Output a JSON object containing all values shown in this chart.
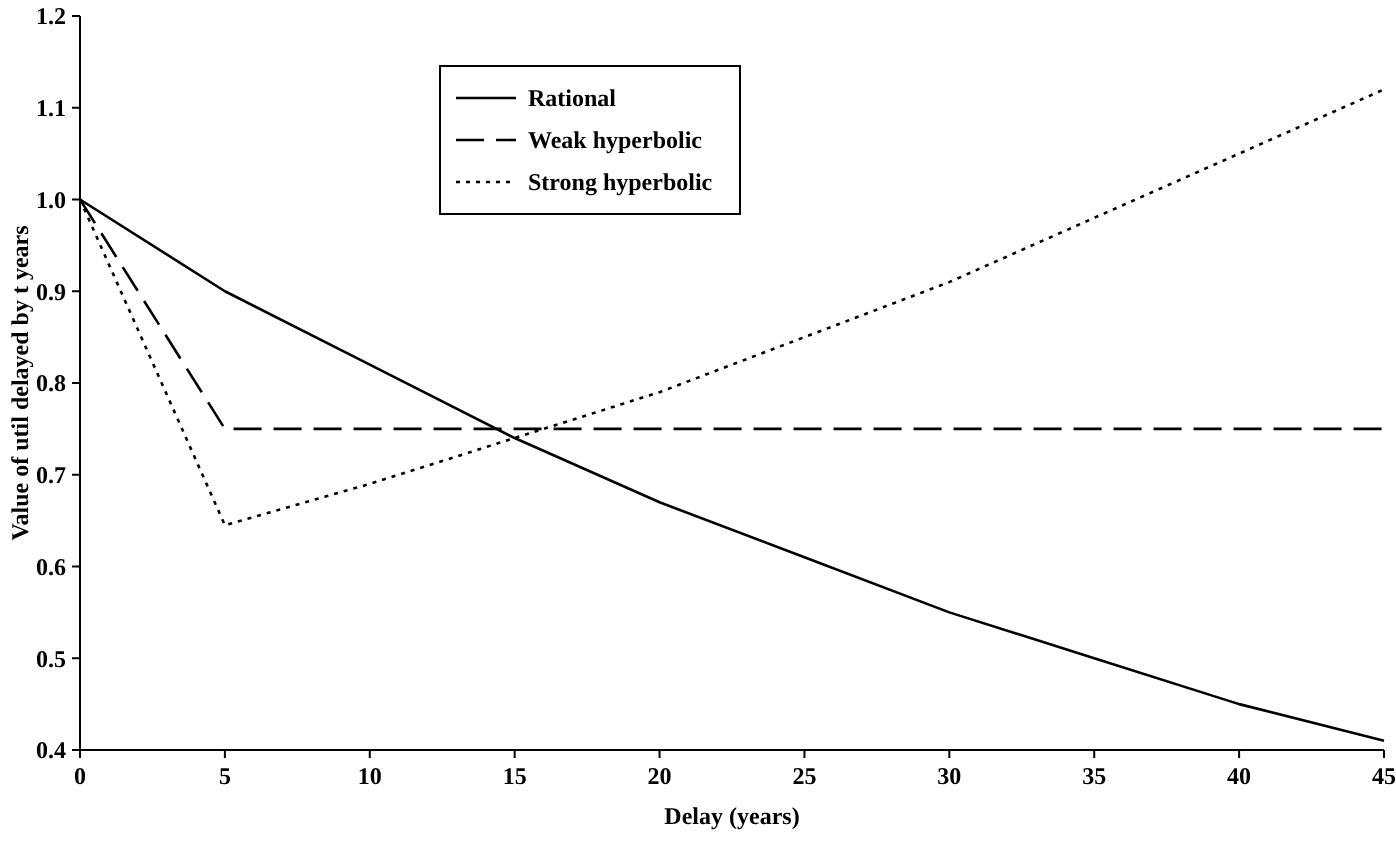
{
  "chart_data": {
    "type": "line",
    "xlabel": "Delay (years)",
    "ylabel": "Value of util delayed by t years",
    "x": [
      0,
      5,
      10,
      15,
      20,
      25,
      30,
      35,
      40,
      45
    ],
    "xlim": [
      0,
      45
    ],
    "xticks": [
      0,
      5,
      10,
      15,
      20,
      25,
      30,
      35,
      40,
      45
    ],
    "ylim": [
      0.4,
      1.2
    ],
    "yticks": [
      0.4,
      0.5,
      0.6,
      0.7,
      0.8,
      0.9,
      {
        "value": 1.0,
        "label": "1.0"
      },
      1.1,
      1.2
    ],
    "grid": false,
    "legend": "top",
    "marker": "none",
    "series": [
      {
        "name": "Rational",
        "color": "#000000",
        "line_style": "solid",
        "values": [
          1.0,
          0.9,
          0.82,
          0.74,
          0.67,
          0.61,
          0.55,
          0.5,
          0.45,
          0.41
        ]
      },
      {
        "name": "Weak hyperbolic",
        "color": "#000000",
        "line_style": "dashed",
        "values": [
          1.0,
          0.75,
          0.75,
          0.75,
          0.75,
          0.75,
          0.75,
          0.75,
          0.75,
          0.75
        ]
      },
      {
        "name": "Strong hyperbolic",
        "color": "#000000",
        "line_style": "dotted",
        "values": [
          1.0,
          0.645,
          0.69,
          0.74,
          0.79,
          0.85,
          0.91,
          0.98,
          1.05,
          1.12
        ]
      }
    ]
  }
}
